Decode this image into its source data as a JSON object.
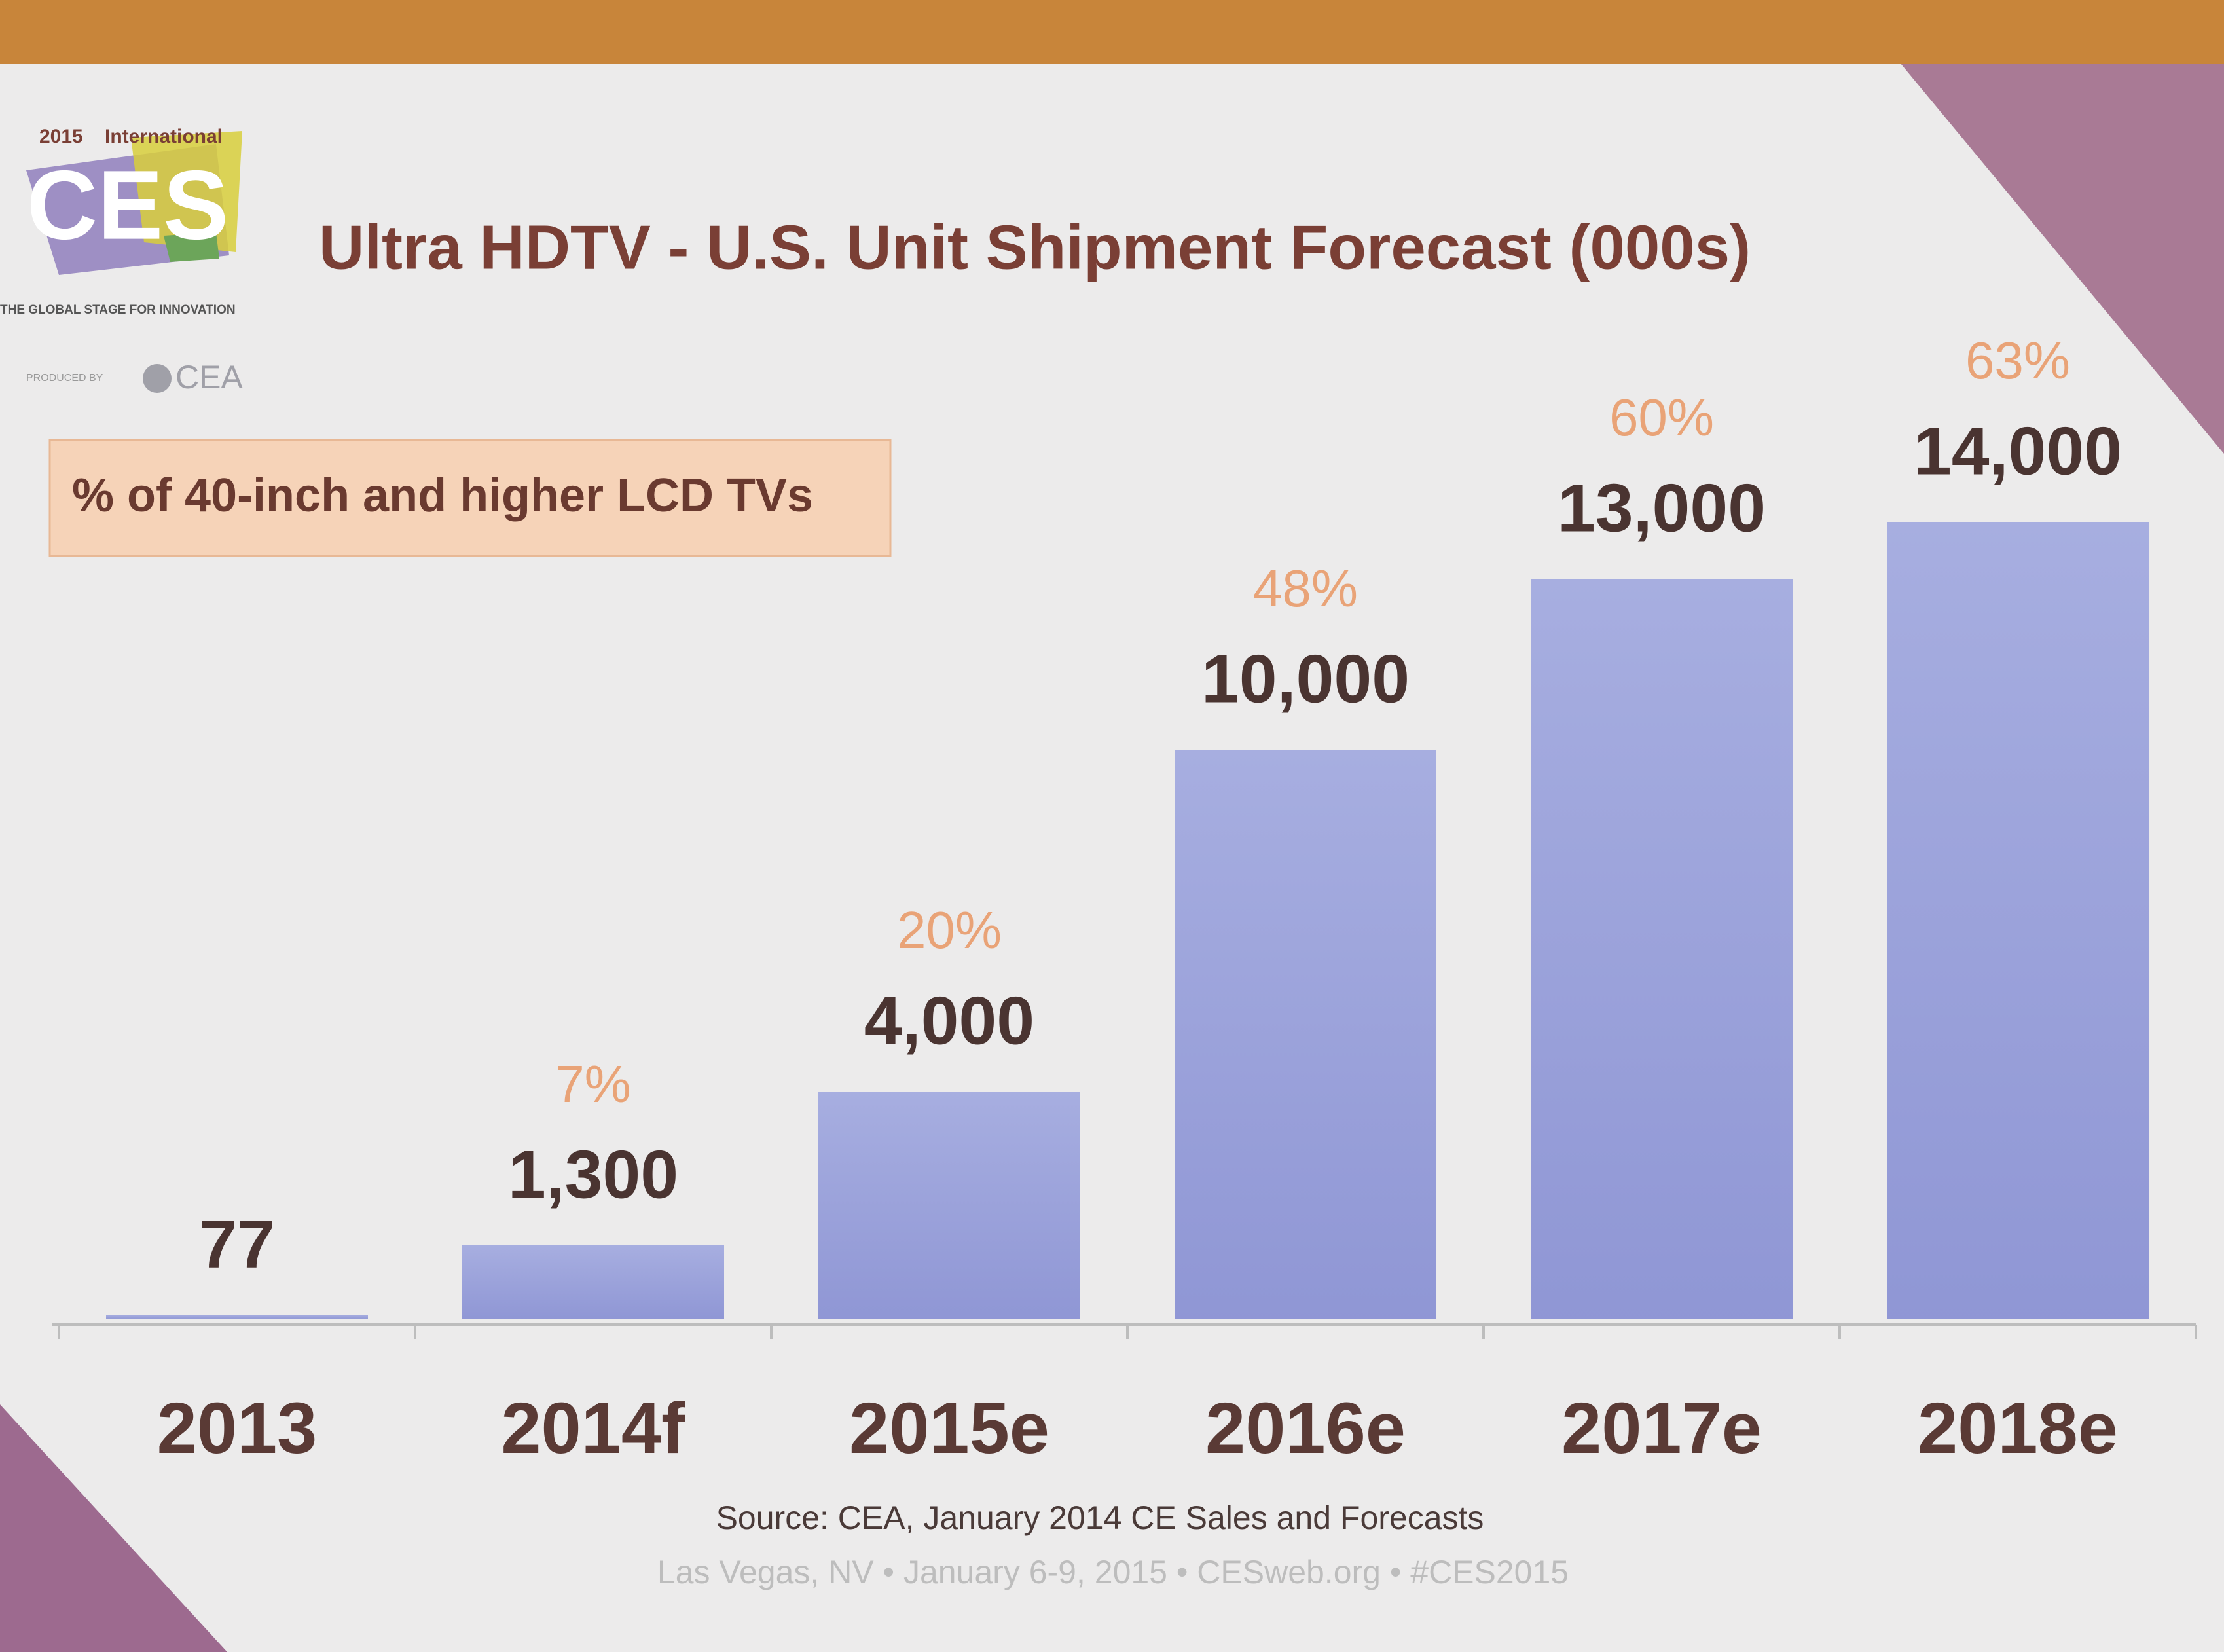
{
  "logo": {
    "year": "2015",
    "event": "International",
    "brand": "CES",
    "tagline": "THE GLOBAL STAGE FOR INNOVATION",
    "producer_prefix": "PRODUCED BY",
    "producer": "CEA"
  },
  "chart_data": {
    "type": "bar",
    "title": "Ultra HDTV - U.S. Unit Shipment Forecast (000s)",
    "categories": [
      "2013",
      "2014f",
      "2015e",
      "2016e",
      "2017e",
      "2018e"
    ],
    "series": [
      {
        "color": "#9ba3dc",
        "values": [
          77,
          1300,
          4000,
          10000,
          13000,
          14000
        ],
        "value_labels": [
          "77",
          "1,300",
          "4,000",
          "10,000",
          "13,000",
          "14,000"
        ]
      },
      {
        "name": "% of 40-inch and higher LCD TVs",
        "color": "#e9a377",
        "values": [
          null,
          7,
          20,
          48,
          60,
          63
        ],
        "value_labels": [
          null,
          "7%",
          "20%",
          "48%",
          "60%",
          "63%"
        ]
      }
    ],
    "ylim": [
      0,
      14000
    ],
    "source": "Source: CEA, January 2014 CE Sales and Forecasts"
  },
  "footer": "Las Vegas, NV  •  January 6-9, 2015  •  CESweb.org  •  #CES2015"
}
